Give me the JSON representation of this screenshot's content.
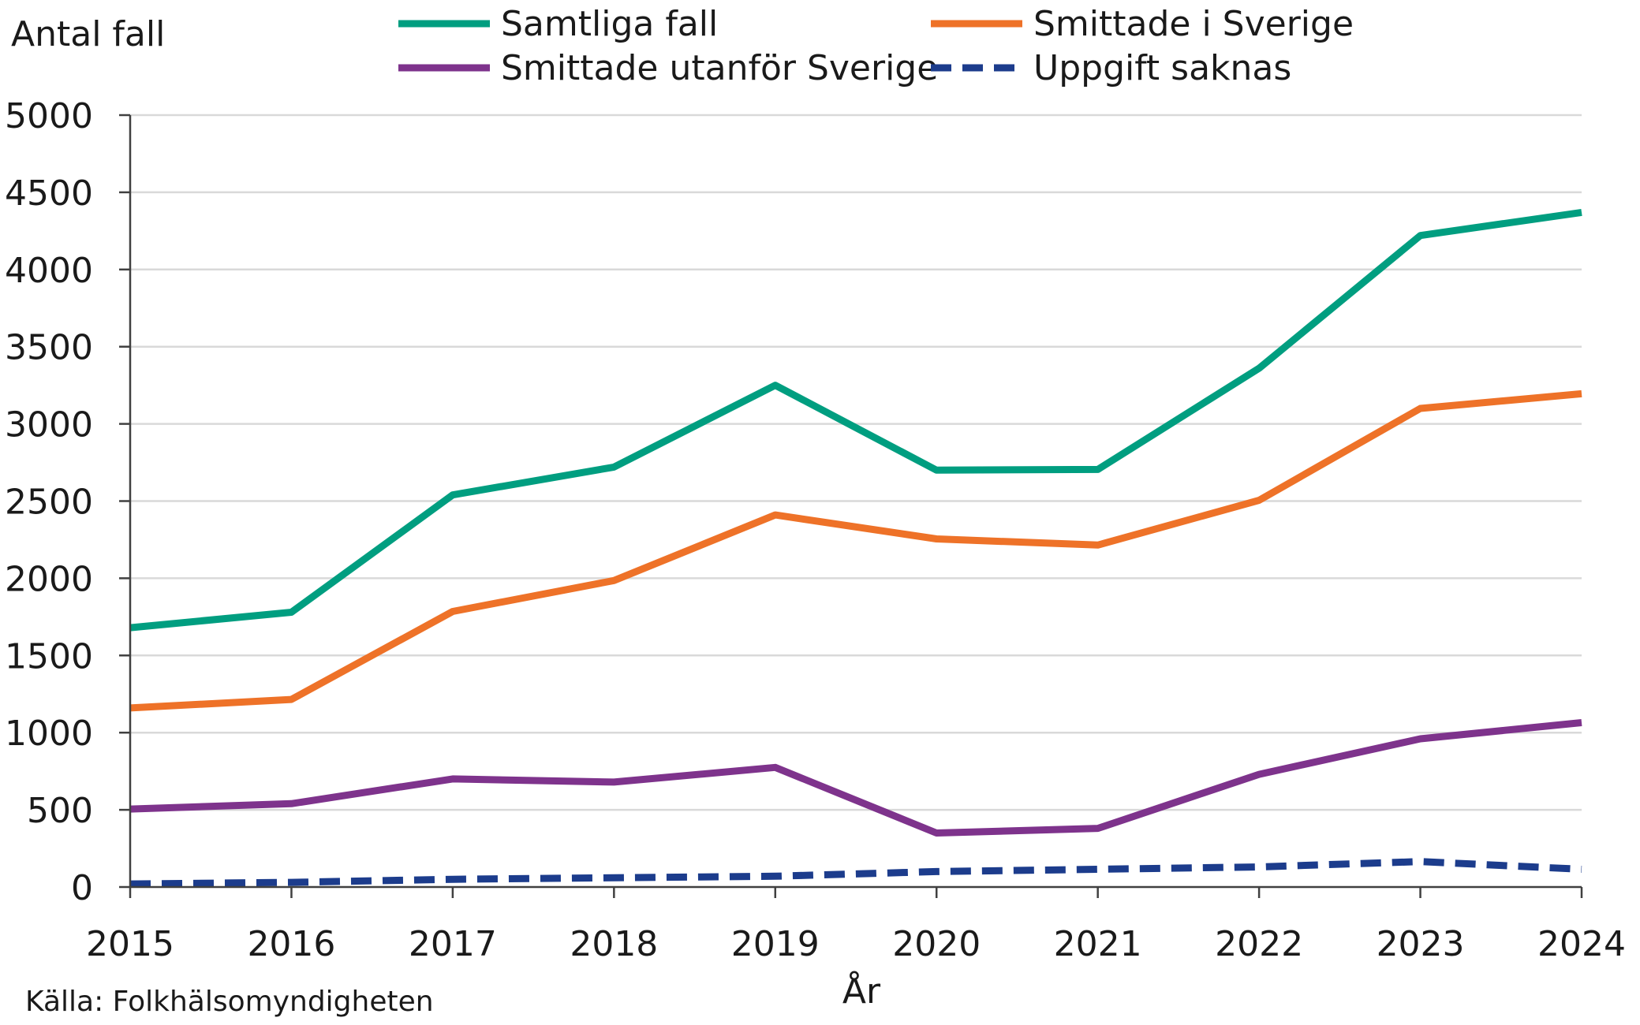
{
  "chart_data": {
    "type": "line",
    "ylabel": "Antal fall",
    "xlabel": "År",
    "source": "Källa: Folkhälsomyndigheten",
    "ylim": [
      0,
      5000
    ],
    "yticks": [
      0,
      500,
      1000,
      1500,
      2000,
      2500,
      3000,
      3500,
      4000,
      4500,
      5000
    ],
    "x": [
      2015,
      2016,
      2017,
      2018,
      2019,
      2020,
      2021,
      2022,
      2023,
      2024
    ],
    "xlabels": [
      "2015",
      "2016",
      "2017",
      "2018",
      "2019",
      "2020",
      "2021",
      "2022",
      "2023",
      "2024"
    ],
    "grid": true,
    "legend_position": "top",
    "series": [
      {
        "name": "Samtliga fall",
        "color": "#009E80",
        "dashed": false,
        "values": [
          1680,
          1780,
          2540,
          2720,
          3250,
          2700,
          2705,
          3360,
          4220,
          4370
        ]
      },
      {
        "name": "Smittade i Sverige",
        "color": "#EE7228",
        "dashed": false,
        "values": [
          1160,
          1215,
          1785,
          1985,
          2410,
          2255,
          2215,
          2505,
          3100,
          3195
        ]
      },
      {
        "name": "Smittade utanför Sverige",
        "color": "#7E338C",
        "dashed": false,
        "values": [
          505,
          540,
          700,
          680,
          775,
          350,
          380,
          730,
          960,
          1065
        ]
      },
      {
        "name": "Uppgift saknas",
        "color": "#1C3C8C",
        "dashed": true,
        "values": [
          20,
          30,
          50,
          60,
          70,
          100,
          115,
          130,
          165,
          115
        ]
      }
    ]
  }
}
